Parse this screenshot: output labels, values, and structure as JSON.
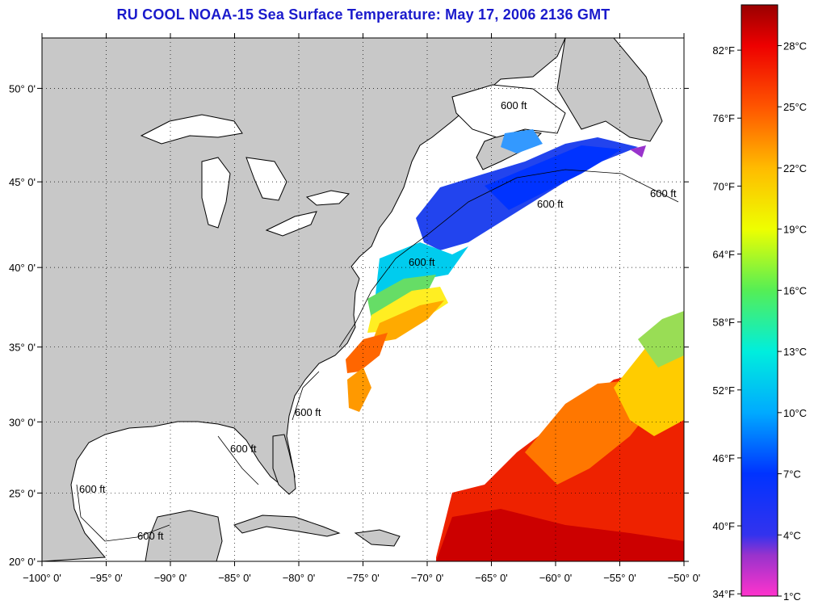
{
  "title": "RU COOL  NOAA-15  Sea Surface Temperature:  May 17, 2006 2136 GMT",
  "map": {
    "lon_range": [
      -100,
      -50
    ],
    "lat_range": [
      20,
      52.5
    ],
    "lon_ticks": [
      {
        "value": -100,
        "label": "−100° 0'"
      },
      {
        "value": -95,
        "label": "−95° 0'"
      },
      {
        "value": -90,
        "label": "−90° 0'"
      },
      {
        "value": -85,
        "label": "−85° 0'"
      },
      {
        "value": -80,
        "label": "−80° 0'"
      },
      {
        "value": -75,
        "label": "−75° 0'"
      },
      {
        "value": -70,
        "label": "−70° 0'"
      },
      {
        "value": -65,
        "label": "−65° 0'"
      },
      {
        "value": -60,
        "label": "−60° 0'"
      },
      {
        "value": -55,
        "label": "−55° 0'"
      },
      {
        "value": -50,
        "label": "−50° 0'"
      }
    ],
    "lat_ticks": [
      {
        "value": 20,
        "label": "20° 0'"
      },
      {
        "value": 25,
        "label": "25° 0'"
      },
      {
        "value": 30,
        "label": "30° 0'"
      },
      {
        "value": 35,
        "label": "35° 0'"
      },
      {
        "value": 40,
        "label": "40° 0'"
      },
      {
        "value": 45,
        "label": "45° 0'"
      },
      {
        "value": 50,
        "label": "50° 0'"
      }
    ],
    "contour_label": "600 ft",
    "colors": {
      "land": "#c8c8c8",
      "water": "#ffffff",
      "coast": "#000000"
    }
  },
  "colorbar": {
    "range_c": [
      1,
      30
    ],
    "fahrenheit_labels": [
      {
        "value": 82,
        "label": "82°F"
      },
      {
        "value": 76,
        "label": "76°F"
      },
      {
        "value": 70,
        "label": "70°F"
      },
      {
        "value": 64,
        "label": "64°F"
      },
      {
        "value": 58,
        "label": "58°F"
      },
      {
        "value": 52,
        "label": "52°F"
      },
      {
        "value": 46,
        "label": "46°F"
      },
      {
        "value": 40,
        "label": "40°F"
      },
      {
        "value": 34,
        "label": "34°F"
      }
    ],
    "celsius_labels": [
      {
        "value": 28,
        "label": "28°C"
      },
      {
        "value": 25,
        "label": "25°C"
      },
      {
        "value": 22,
        "label": "22°C"
      },
      {
        "value": 19,
        "label": "19°C"
      },
      {
        "value": 16,
        "label": "16°C"
      },
      {
        "value": 13,
        "label": "13°C"
      },
      {
        "value": 10,
        "label": "10°C"
      },
      {
        "value": 7,
        "label": "7°C"
      },
      {
        "value": 4,
        "label": "4°C"
      },
      {
        "value": 1,
        "label": "1°C"
      }
    ],
    "stops": [
      {
        "c": 1,
        "color": "#ff33cc"
      },
      {
        "c": 3,
        "color": "#9933cc"
      },
      {
        "c": 4,
        "color": "#3333ee"
      },
      {
        "c": 7,
        "color": "#0033ff"
      },
      {
        "c": 10,
        "color": "#00aaff"
      },
      {
        "c": 13,
        "color": "#00eedd"
      },
      {
        "c": 16,
        "color": "#55ee55"
      },
      {
        "c": 19,
        "color": "#eeff00"
      },
      {
        "c": 22,
        "color": "#ffbb00"
      },
      {
        "c": 25,
        "color": "#ff5500"
      },
      {
        "c": 28,
        "color": "#ee0000"
      },
      {
        "c": 30,
        "color": "#990000"
      }
    ]
  }
}
